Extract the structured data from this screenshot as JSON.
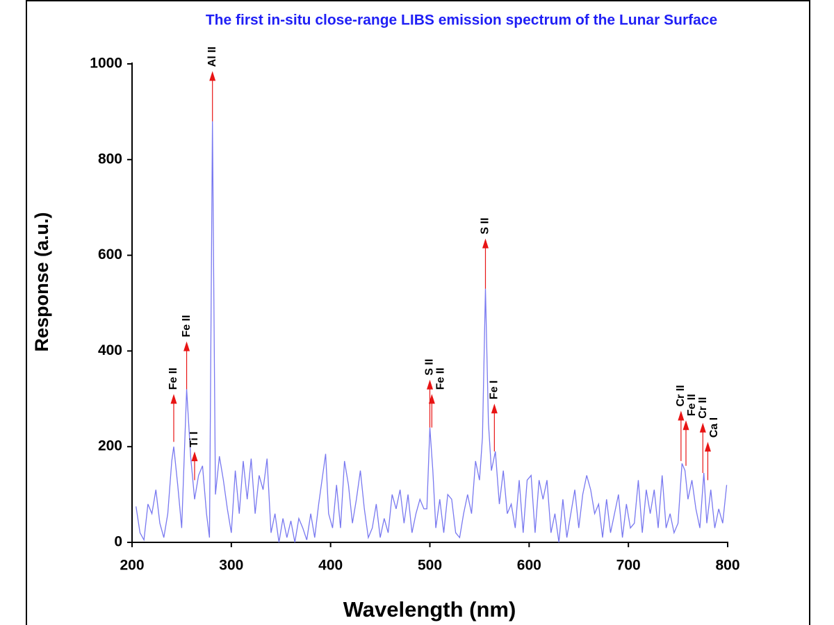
{
  "chart_data": {
    "type": "line",
    "title": "The first in-situ close-range LIBS emission spectrum of the Lunar Surface",
    "xlabel": "Wavelength (nm)",
    "ylabel": "Response (a.u.)",
    "color": "#7878f0",
    "annotation_color": "#e81414",
    "x": [
      204,
      208,
      212,
      216,
      220,
      224,
      228,
      232,
      236,
      240,
      242,
      246,
      250,
      255,
      259,
      263,
      267,
      271,
      275,
      278,
      281,
      284,
      288,
      292,
      296,
      300,
      304,
      308,
      312,
      316,
      320,
      324,
      328,
      332,
      336,
      340,
      344,
      348,
      352,
      356,
      360,
      364,
      368,
      372,
      376,
      380,
      384,
      388,
      392,
      395,
      398,
      402,
      406,
      410,
      414,
      418,
      422,
      426,
      430,
      434,
      438,
      442,
      446,
      450,
      454,
      458,
      462,
      466,
      470,
      474,
      478,
      482,
      486,
      490,
      494,
      497,
      500,
      503,
      506,
      510,
      514,
      518,
      522,
      526,
      530,
      534,
      538,
      542,
      546,
      550,
      553,
      556,
      559,
      562,
      566,
      570,
      574,
      578,
      582,
      586,
      590,
      594,
      598,
      602,
      606,
      610,
      614,
      618,
      622,
      626,
      630,
      634,
      638,
      642,
      646,
      650,
      654,
      658,
      662,
      666,
      670,
      674,
      678,
      682,
      686,
      690,
      694,
      698,
      702,
      706,
      710,
      714,
      718,
      722,
      726,
      730,
      734,
      738,
      742,
      746,
      750,
      754,
      757,
      760,
      764,
      768,
      772,
      776,
      779,
      783,
      787,
      791,
      795,
      799
    ],
    "values": [
      75,
      20,
      5,
      80,
      60,
      110,
      40,
      10,
      60,
      170,
      200,
      120,
      30,
      320,
      180,
      90,
      140,
      160,
      60,
      10,
      880,
      100,
      180,
      130,
      70,
      20,
      150,
      60,
      170,
      90,
      175,
      60,
      140,
      110,
      175,
      20,
      60,
      0,
      50,
      10,
      45,
      0,
      50,
      30,
      5,
      60,
      10,
      80,
      140,
      185,
      60,
      30,
      120,
      30,
      170,
      120,
      40,
      90,
      150,
      70,
      10,
      30,
      80,
      10,
      50,
      20,
      100,
      70,
      110,
      40,
      100,
      20,
      60,
      90,
      70,
      70,
      240,
      150,
      30,
      90,
      20,
      100,
      90,
      20,
      10,
      60,
      100,
      60,
      170,
      130,
      220,
      530,
      250,
      150,
      190,
      80,
      150,
      60,
      80,
      30,
      130,
      20,
      130,
      140,
      20,
      130,
      90,
      130,
      20,
      60,
      0,
      90,
      10,
      60,
      110,
      30,
      100,
      140,
      110,
      60,
      80,
      10,
      90,
      20,
      60,
      100,
      10,
      80,
      30,
      40,
      130,
      20,
      110,
      60,
      110,
      30,
      140,
      30,
      60,
      20,
      40,
      165,
      150,
      90,
      130,
      70,
      30,
      145,
      40,
      110,
      30,
      70,
      40,
      120
    ],
    "xlim": [
      200,
      800
    ],
    "xticks": [
      200,
      300,
      400,
      500,
      600,
      700,
      800
    ],
    "ylim": [
      0,
      1000
    ],
    "yticks": [
      0,
      200,
      400,
      600,
      800,
      1000
    ],
    "annotations": [
      {
        "text": "Fe II",
        "x": 242,
        "y": [
          210,
          310
        ]
      },
      {
        "text": "Fe II",
        "x": 255,
        "y": [
          320,
          420
        ]
      },
      {
        "text": "Ti I",
        "x": 263,
        "y": [
          130,
          190
        ]
      },
      {
        "text": "Al II",
        "x": 281,
        "y": [
          880,
          985
        ]
      },
      {
        "text": "S II",
        "x": 500,
        "y": [
          240,
          340
        ]
      },
      {
        "text": "Fe II",
        "x": 502,
        "y": [
          240,
          310
        ]
      },
      {
        "text": "S II",
        "x": 556,
        "y": [
          530,
          635
        ]
      },
      {
        "text": "Fe I",
        "x": 565,
        "y": [
          190,
          290
        ]
      },
      {
        "text": "Cr II",
        "x": 753,
        "y": [
          170,
          275
        ]
      },
      {
        "text": "Fe II",
        "x": 758,
        "y": [
          160,
          255
        ]
      },
      {
        "text": "Cr II",
        "x": 775,
        "y": [
          145,
          250
        ]
      },
      {
        "text": "Ca I",
        "x": 780,
        "y": [
          130,
          210
        ]
      }
    ]
  }
}
